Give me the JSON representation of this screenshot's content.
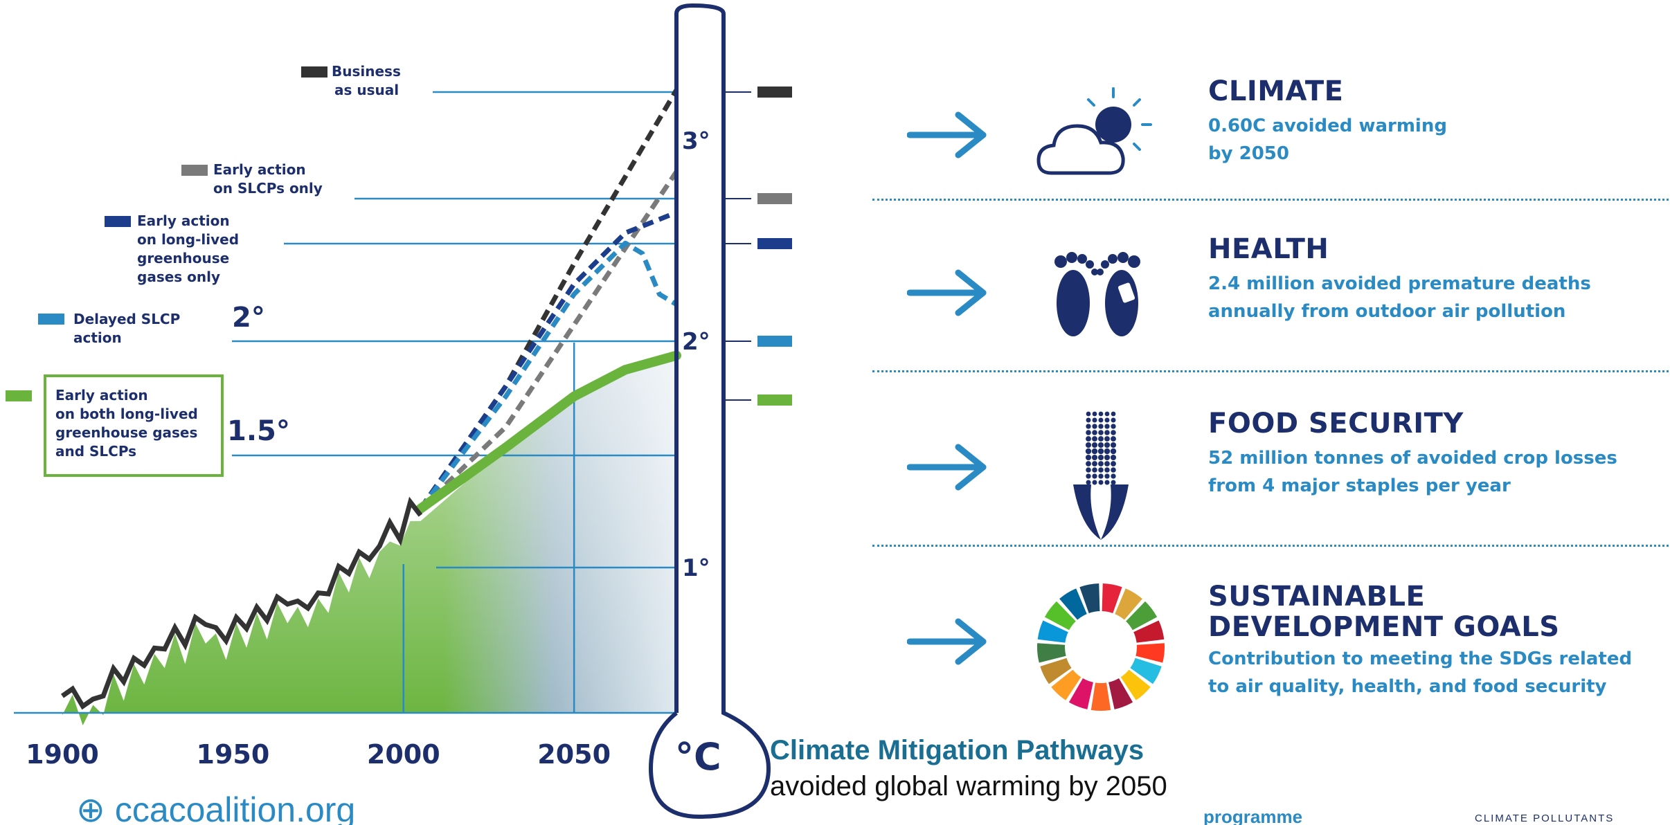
{
  "chart_data": {
    "type": "line",
    "x_ticks": [
      "1900",
      "1950",
      "2000",
      "2050"
    ],
    "unit_label": "°C",
    "y_ticks": [
      "1°",
      "2°",
      "3°"
    ],
    "left_markers": [
      "2°",
      "1.5°"
    ],
    "xlim": [
      1880,
      2080
    ],
    "ylim": [
      0,
      3.5
    ],
    "series": [
      {
        "name": "Business as usual",
        "color": "#333333",
        "x": [
          2005,
          2030,
          2050,
          2080
        ],
        "y": [
          1.0,
          1.6,
          2.2,
          3.05
        ]
      },
      {
        "name": "Early action on SLCPs only",
        "color": "#7a7a7a",
        "x": [
          2005,
          2030,
          2050,
          2080
        ],
        "y": [
          1.0,
          1.4,
          1.9,
          2.65
        ]
      },
      {
        "name": "Early action on long-lived greenhouse gases only",
        "color": "#1c3d8c",
        "x": [
          2005,
          2030,
          2050,
          2065,
          2080
        ],
        "y": [
          1.0,
          1.6,
          2.1,
          2.35,
          2.45
        ]
      },
      {
        "name": "Delayed SLCP action",
        "color": "#2a8ac3",
        "x": [
          2005,
          2030,
          2050,
          2065,
          2070,
          2075,
          2080
        ],
        "y": [
          1.0,
          1.55,
          2.05,
          2.3,
          2.25,
          2.05,
          2.0
        ]
      },
      {
        "name": "Early action on both long-lived greenhouse gases and SLCPs",
        "color": "#6ab43e",
        "x": [
          2005,
          2030,
          2050,
          2065,
          2080
        ],
        "y": [
          1.0,
          1.3,
          1.55,
          1.68,
          1.75
        ]
      }
    ],
    "historical": {
      "x": [
        1900,
        1903,
        1906,
        1909,
        1912,
        1915,
        1918,
        1921,
        1924,
        1927,
        1930,
        1933,
        1936,
        1939,
        1942,
        1945,
        1948,
        1951,
        1954,
        1957,
        1960,
        1963,
        1966,
        1969,
        1972,
        1975,
        1978,
        1981,
        1984,
        1987,
        1990,
        1993,
        1996,
        1999,
        2002,
        2005
      ],
      "y": [
        0.05,
        0.15,
        0.0,
        0.1,
        0.05,
        0.25,
        0.12,
        0.3,
        0.2,
        0.35,
        0.28,
        0.45,
        0.3,
        0.5,
        0.4,
        0.45,
        0.32,
        0.5,
        0.38,
        0.55,
        0.42,
        0.6,
        0.5,
        0.58,
        0.48,
        0.62,
        0.55,
        0.75,
        0.65,
        0.82,
        0.72,
        0.85,
        0.9,
        0.88,
        1.0,
        1.0
      ]
    }
  },
  "legend": [
    {
      "label": [
        "Business",
        "as usual"
      ],
      "color": "#333333"
    },
    {
      "label": [
        "Early action",
        "on SLCPs only"
      ],
      "color": "#7a7a7a"
    },
    {
      "label": [
        "Early action",
        "on long-lived",
        "greenhouse",
        "gases only"
      ],
      "color": "#1c3d8c"
    },
    {
      "label": [
        "Delayed SLCP",
        "action"
      ],
      "color": "#2a8ac3"
    },
    {
      "label": [
        "Early action",
        "on both long-lived",
        "greenhouse gases",
        "and SLCPs"
      ],
      "color": "#6ab43e"
    }
  ],
  "benefits": [
    {
      "title": [
        "CLIMATE"
      ],
      "desc": [
        "0.60C avoided warming",
        "by 2050"
      ],
      "icon": "cloud-sun-icon"
    },
    {
      "title": [
        "HEALTH"
      ],
      "desc": [
        "2.4 million avoided premature deaths",
        "annually from outdoor air pollution"
      ],
      "icon": "footprints-icon"
    },
    {
      "title": [
        "FOOD SECURITY"
      ],
      "desc": [
        "52 million tonnes of avoided crop losses",
        "from 4 major staples per year"
      ],
      "icon": "corn-icon"
    },
    {
      "title": [
        "SUSTAINABLE",
        "DEVELOPMENT GOALS"
      ],
      "desc": [
        "Contribution to meeting the SDGs related",
        "to air quality, health, and food security"
      ],
      "icon": "sdg-wheel-icon"
    }
  ],
  "caption": {
    "title": "Climate Mitigation Pathways",
    "subtitle": "avoided global warming by 2050"
  },
  "footer": {
    "website": "ccacoalition.org",
    "middle": "programme",
    "right": "CLIMATE POLLUTANTS"
  },
  "colors": {
    "navy": "#1c2e6b",
    "blue": "#2a8ac3",
    "green": "#6ab43e"
  }
}
